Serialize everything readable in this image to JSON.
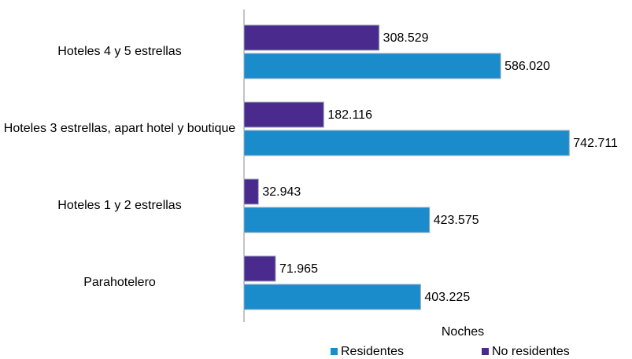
{
  "chart_data": {
    "type": "bar",
    "orientation": "horizontal",
    "categories": [
      "Hoteles 4 y 5 estrellas",
      "Hoteles 3 estrellas, apart hotel y boutique",
      "Hoteles 1 y 2 estrellas",
      "Parahotelero"
    ],
    "series": [
      {
        "name": "Residentes",
        "color": "#1a8ccc",
        "values": [
          586020,
          742711,
          423575,
          403225
        ],
        "value_labels": [
          "586.020",
          "742.711",
          "423.575",
          "403.225"
        ]
      },
      {
        "name": "No residentes",
        "color": "#4a2a8c",
        "values": [
          308529,
          182116,
          32943,
          71965
        ],
        "value_labels": [
          "308.529",
          "182.116",
          "32.943",
          "71.965"
        ]
      }
    ],
    "xlabel": "Noches",
    "xlim": [
      0,
      850000
    ]
  }
}
